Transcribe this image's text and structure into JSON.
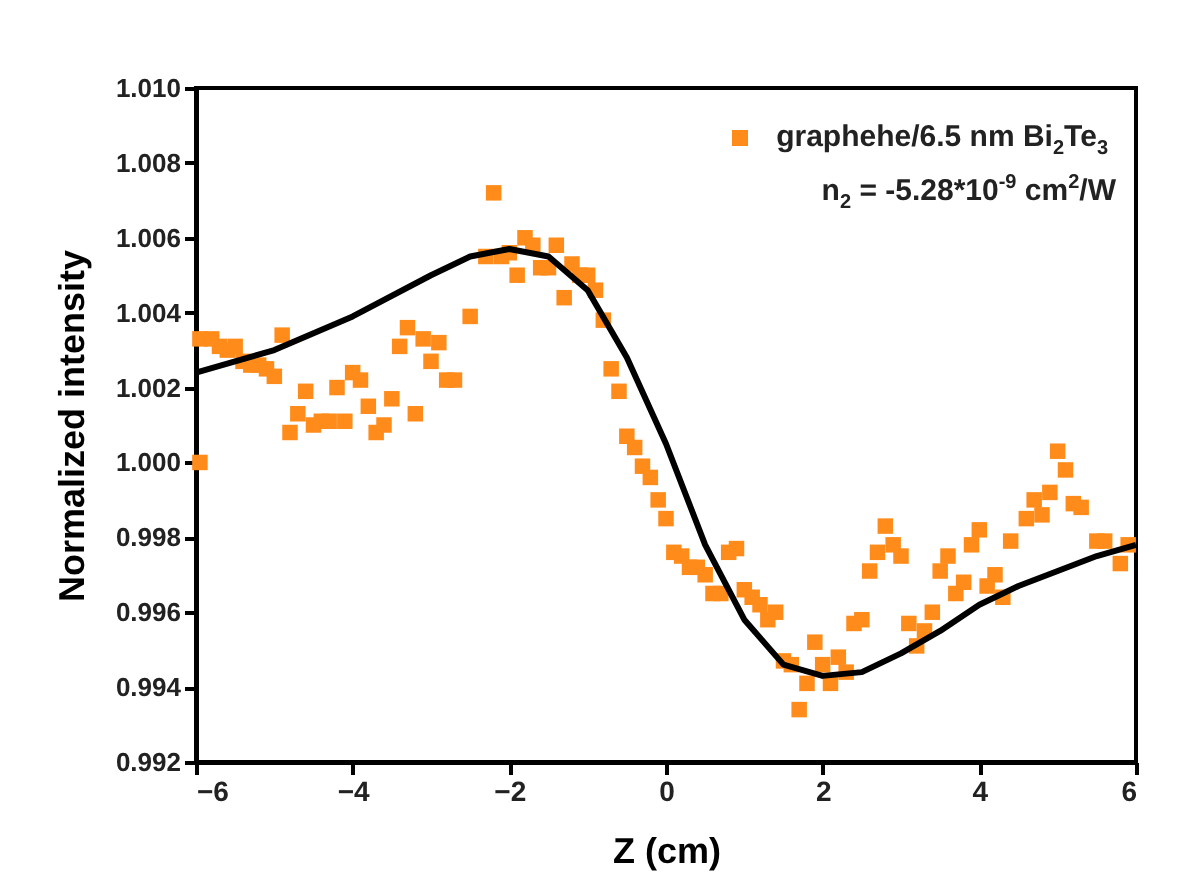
{
  "chart_data": {
    "type": "scatter",
    "xlabel": "Z (cm)",
    "ylabel": "Normalized intensity",
    "xlim": [
      -6,
      6
    ],
    "xticks": [
      -6,
      -4,
      -2,
      0,
      2,
      4,
      6
    ],
    "ylim": [
      0.992,
      1.01
    ],
    "yticks": [
      {
        "value": 0.992,
        "label": "0.992"
      },
      {
        "value": 0.994,
        "label": "0.994"
      },
      {
        "value": 0.996,
        "label": "0.996"
      },
      {
        "value": 0.998,
        "label": "0.998"
      },
      {
        "value": 1.0,
        "label": "1.000"
      },
      {
        "value": 1.002,
        "label": "1.002"
      },
      {
        "value": 1.004,
        "label": "1.004"
      },
      {
        "value": 1.006,
        "label": "1.006"
      },
      {
        "value": 1.008,
        "label": "1.008"
      },
      {
        "value": 1.01,
        "label": "1.010"
      }
    ],
    "legend": "top right",
    "grid": false,
    "annotations": [
      "n$_{2}$ = -5.28*10$^{-9}$ cm$^{2}$/W"
    ],
    "series": [
      {
        "name": "graphehe/6.5 nm Bi$_{2}$Te$_{3}$",
        "marker": "square",
        "color": "#ff8c1a",
        "x": [
          -5.95,
          -5.95,
          -5.8,
          -5.7,
          -5.6,
          -5.5,
          -5.4,
          -5.3,
          -5.2,
          -5.1,
          -5.0,
          -4.9,
          -4.8,
          -4.7,
          -4.6,
          -4.5,
          -4.4,
          -4.3,
          -4.2,
          -4.1,
          -4.0,
          -3.9,
          -3.8,
          -3.7,
          -3.6,
          -3.5,
          -3.4,
          -3.3,
          -3.2,
          -3.1,
          -3.0,
          -2.9,
          -2.8,
          -2.7,
          -2.5,
          -2.3,
          -2.2,
          -2.1,
          -2.0,
          -1.9,
          -1.8,
          -1.7,
          -1.6,
          -1.5,
          -1.4,
          -1.3,
          -1.2,
          -1.1,
          -1.0,
          -0.9,
          -0.8,
          -0.7,
          -0.6,
          -0.5,
          -0.4,
          -0.3,
          -0.2,
          -0.1,
          0.0,
          0.1,
          0.2,
          0.3,
          0.4,
          0.5,
          0.6,
          0.7,
          0.8,
          0.9,
          1.0,
          1.1,
          1.2,
          1.3,
          1.4,
          1.5,
          1.6,
          1.7,
          1.8,
          1.9,
          2.0,
          2.1,
          2.2,
          2.3,
          2.4,
          2.5,
          2.6,
          2.7,
          2.8,
          2.9,
          3.0,
          3.1,
          3.2,
          3.3,
          3.4,
          3.5,
          3.6,
          3.7,
          3.8,
          3.9,
          4.0,
          4.1,
          4.2,
          4.3,
          4.4,
          4.6,
          4.7,
          4.8,
          4.9,
          5.0,
          5.1,
          5.2,
          5.3,
          5.5,
          5.6,
          5.8,
          5.9
        ],
        "values": [
          1.0033,
          1.0,
          1.0033,
          1.0031,
          1.003,
          1.0031,
          1.0027,
          1.0026,
          1.0026,
          1.0025,
          1.0023,
          1.0034,
          1.0008,
          1.0013,
          1.0019,
          1.001,
          1.0011,
          1.0011,
          1.002,
          1.0011,
          1.0024,
          1.0022,
          1.0015,
          1.0008,
          1.001,
          1.0017,
          1.0031,
          1.0036,
          1.0013,
          1.0033,
          1.0027,
          1.0032,
          1.0022,
          1.0022,
          1.0039,
          1.0055,
          1.0072,
          1.0055,
          1.0056,
          1.005,
          1.006,
          1.0058,
          1.0052,
          1.0052,
          1.0058,
          1.0044,
          1.0053,
          1.005,
          1.005,
          1.0046,
          1.0038,
          1.0025,
          1.0019,
          1.0007,
          1.0004,
          0.9999,
          0.9996,
          0.999,
          0.9985,
          0.9976,
          0.9975,
          0.9972,
          0.9972,
          0.997,
          0.9965,
          0.9965,
          0.9976,
          0.9977,
          0.9966,
          0.9964,
          0.9962,
          0.9958,
          0.996,
          0.9947,
          0.9946,
          0.9934,
          0.9941,
          0.9952,
          0.9946,
          0.9941,
          0.9948,
          0.9944,
          0.9957,
          0.9958,
          0.9971,
          0.9976,
          0.9983,
          0.9978,
          0.9975,
          0.9957,
          0.9951,
          0.9955,
          0.996,
          0.9971,
          0.9975,
          0.9965,
          0.9968,
          0.9978,
          0.9982,
          0.9967,
          0.997,
          0.9964,
          0.9979,
          0.9985,
          0.999,
          0.9986,
          0.9992,
          1.0003,
          0.9998,
          0.9989,
          0.9988,
          0.9979,
          0.9979,
          0.9973,
          0.9978
        ]
      },
      {
        "type": "line",
        "color": "#000000",
        "x": [
          -6,
          -5,
          -4,
          -3,
          -2.5,
          -2,
          -1.5,
          -1,
          -0.5,
          0,
          0.5,
          1,
          1.5,
          2,
          2.5,
          3,
          3.5,
          4,
          4.5,
          5,
          5.5,
          6
        ],
        "values": [
          1.0024,
          1.003,
          1.0039,
          1.005,
          1.0055,
          1.0057,
          1.0055,
          1.0046,
          1.0028,
          1.0005,
          0.9978,
          0.9958,
          0.9946,
          0.9943,
          0.9944,
          0.9949,
          0.9955,
          0.9962,
          0.9967,
          0.9971,
          0.9975,
          0.9978
        ]
      }
    ]
  }
}
